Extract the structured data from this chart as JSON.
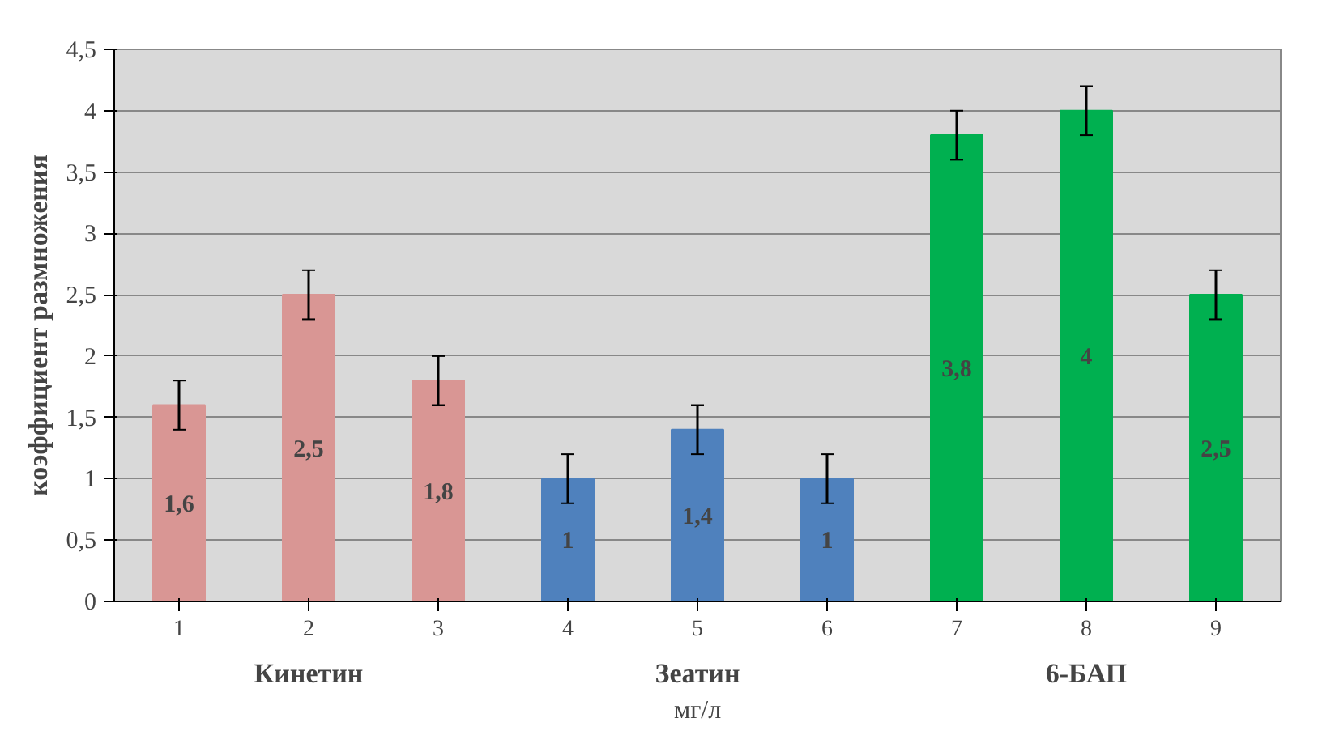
{
  "chart_data": {
    "type": "bar",
    "ylabel": "коэффициент размножения",
    "xlabel": "мг/л",
    "categories": [
      "1",
      "2",
      "3",
      "4",
      "5",
      "6",
      "7",
      "8",
      "9"
    ],
    "values": [
      1.6,
      2.5,
      1.8,
      1,
      1.4,
      1,
      3.8,
      4,
      2.5
    ],
    "value_labels": [
      "1,6",
      "2,5",
      "1,8",
      "1",
      "1,4",
      "1",
      "3,8",
      "4",
      "2,5"
    ],
    "colors": [
      "#d99694",
      "#d99694",
      "#d99694",
      "#4f81bd",
      "#4f81bd",
      "#4f81bd",
      "#00b050",
      "#00b050",
      "#00b050"
    ],
    "errors": [
      0.2,
      0.2,
      0.2,
      0.2,
      0.2,
      0.2,
      0.2,
      0.2,
      0.2
    ],
    "ylim": [
      0,
      4.5
    ],
    "yticks": [
      0,
      {
        "value": 0.5,
        "label": "0,5"
      },
      1,
      {
        "value": 1.5,
        "label": "1,5"
      },
      2,
      {
        "value": 2.5,
        "label": "2,5"
      },
      3,
      {
        "value": 3.5,
        "label": "3,5"
      },
      4,
      {
        "value": 4.5,
        "label": "4,5"
      }
    ],
    "grid": "y",
    "annotations": [
      "Кинетин",
      "Зеатин",
      "6-БАП"
    ]
  }
}
